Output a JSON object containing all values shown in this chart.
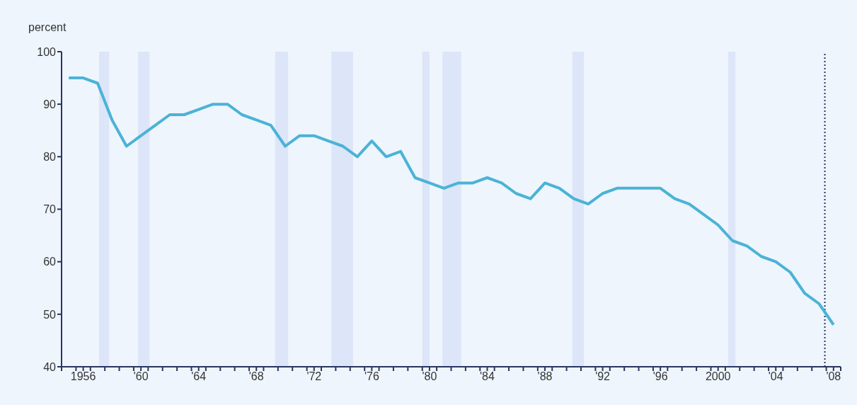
{
  "chart_data": {
    "type": "line",
    "ylabel": "percent",
    "x": [
      1955,
      1956,
      1957,
      1958,
      1959,
      1960,
      1961,
      1962,
      1963,
      1964,
      1965,
      1966,
      1967,
      1968,
      1969,
      1970,
      1971,
      1972,
      1973,
      1974,
      1975,
      1976,
      1977,
      1978,
      1979,
      1980,
      1981,
      1982,
      1983,
      1984,
      1985,
      1986,
      1987,
      1988,
      1989,
      1990,
      1991,
      1992,
      1993,
      1994,
      1995,
      1996,
      1997,
      1998,
      1999,
      2000,
      2001,
      2002,
      2003,
      2004,
      2005,
      2006,
      2007,
      2008
    ],
    "series": [
      {
        "color": "#4ab3d6",
        "values": [
          95,
          95,
          94,
          87,
          82,
          84,
          86,
          88,
          88,
          89,
          90,
          90,
          88,
          87,
          86,
          82,
          84,
          84,
          83,
          82,
          80,
          83,
          80,
          81,
          76,
          75,
          74,
          75,
          75,
          76,
          75,
          73,
          72,
          75,
          74,
          72,
          71,
          73,
          74,
          74,
          74,
          74,
          72,
          71,
          69,
          67,
          64,
          63,
          61,
          60,
          58,
          54,
          52,
          48
        ]
      }
    ],
    "xlim": [
      1954.5,
      2008.5
    ],
    "xticks": [
      {
        "value": 1954.5,
        "label": null
      },
      {
        "value": 1955.5,
        "label": null
      },
      {
        "value": 1956,
        "label": "1956"
      },
      {
        "value": 1956.5,
        "label": null
      },
      {
        "value": 1957.5,
        "label": null
      },
      {
        "value": 1958.5,
        "label": null
      },
      {
        "value": 1959.5,
        "label": null
      },
      {
        "value": 1960,
        "label": "'60"
      },
      {
        "value": 1960.5,
        "label": null
      },
      {
        "value": 1961.5,
        "label": null
      },
      {
        "value": 1962.5,
        "label": null
      },
      {
        "value": 1963.5,
        "label": null
      },
      {
        "value": 1964,
        "label": "'64"
      },
      {
        "value": 1964.5,
        "label": null
      },
      {
        "value": 1965.5,
        "label": null
      },
      {
        "value": 1966.5,
        "label": null
      },
      {
        "value": 1967.5,
        "label": null
      },
      {
        "value": 1968,
        "label": "'68"
      },
      {
        "value": 1968.5,
        "label": null
      },
      {
        "value": 1969.5,
        "label": null
      },
      {
        "value": 1970.5,
        "label": null
      },
      {
        "value": 1971.5,
        "label": null
      },
      {
        "value": 1972,
        "label": "'72"
      },
      {
        "value": 1972.5,
        "label": null
      },
      {
        "value": 1973.5,
        "label": null
      },
      {
        "value": 1974.5,
        "label": null
      },
      {
        "value": 1975.5,
        "label": null
      },
      {
        "value": 1976,
        "label": "'76"
      },
      {
        "value": 1976.5,
        "label": null
      },
      {
        "value": 1977.5,
        "label": null
      },
      {
        "value": 1978.5,
        "label": null
      },
      {
        "value": 1979.5,
        "label": null
      },
      {
        "value": 1980,
        "label": "'80"
      },
      {
        "value": 1980.5,
        "label": null
      },
      {
        "value": 1981.5,
        "label": null
      },
      {
        "value": 1982.5,
        "label": null
      },
      {
        "value": 1983.5,
        "label": null
      },
      {
        "value": 1984,
        "label": "'84"
      },
      {
        "value": 1984.5,
        "label": null
      },
      {
        "value": 1985.5,
        "label": null
      },
      {
        "value": 1986.5,
        "label": null
      },
      {
        "value": 1987.5,
        "label": null
      },
      {
        "value": 1988,
        "label": "'88"
      },
      {
        "value": 1988.5,
        "label": null
      },
      {
        "value": 1989.5,
        "label": null
      },
      {
        "value": 1990.5,
        "label": null
      },
      {
        "value": 1991.5,
        "label": null
      },
      {
        "value": 1992,
        "label": "'92"
      },
      {
        "value": 1992.5,
        "label": null
      },
      {
        "value": 1993.5,
        "label": null
      },
      {
        "value": 1994.5,
        "label": null
      },
      {
        "value": 1995.5,
        "label": null
      },
      {
        "value": 1996,
        "label": "'96"
      },
      {
        "value": 1996.5,
        "label": null
      },
      {
        "value": 1997.5,
        "label": null
      },
      {
        "value": 1998.5,
        "label": null
      },
      {
        "value": 1999.5,
        "label": null
      },
      {
        "value": 2000,
        "label": "2000"
      },
      {
        "value": 2000.5,
        "label": null
      },
      {
        "value": 2001.5,
        "label": null
      },
      {
        "value": 2002.5,
        "label": null
      },
      {
        "value": 2003.5,
        "label": null
      },
      {
        "value": 2004,
        "label": "'04"
      },
      {
        "value": 2004.5,
        "label": null
      },
      {
        "value": 2005.5,
        "label": null
      },
      {
        "value": 2006.5,
        "label": null
      },
      {
        "value": 2007.5,
        "label": null
      },
      {
        "value": 2008,
        "label": "'08"
      },
      {
        "value": 2008.5,
        "label": null
      }
    ],
    "ylim": [
      40,
      100
    ],
    "yticks": [
      40,
      50,
      60,
      70,
      80,
      90,
      100
    ],
    "grid": false,
    "legend": false,
    "marker": "none",
    "line_style": "solid",
    "bands": [
      {
        "axis": "x",
        "from": 1957.1,
        "to": 1957.8,
        "color": "#dde5f8"
      },
      {
        "axis": "x",
        "from": 1959.8,
        "to": 1960.6,
        "color": "#dde5f8"
      },
      {
        "axis": "x",
        "from": 1969.3,
        "to": 1970.2,
        "color": "#dde5f8"
      },
      {
        "axis": "x",
        "from": 1973.2,
        "to": 1974.7,
        "color": "#dde5f8"
      },
      {
        "axis": "x",
        "from": 1979.5,
        "to": 1980.0,
        "color": "#dde5f8"
      },
      {
        "axis": "x",
        "from": 1980.9,
        "to": 1982.2,
        "color": "#dde5f8"
      },
      {
        "axis": "x",
        "from": 1989.9,
        "to": 1990.7,
        "color": "#dde5f8"
      },
      {
        "axis": "x",
        "from": 2000.7,
        "to": 2001.2,
        "color": "#dde5f8"
      }
    ],
    "ref_lines": [
      {
        "axis": "x",
        "value": 2007.4,
        "color": "#2a3560",
        "line_style": "dotted"
      }
    ]
  }
}
